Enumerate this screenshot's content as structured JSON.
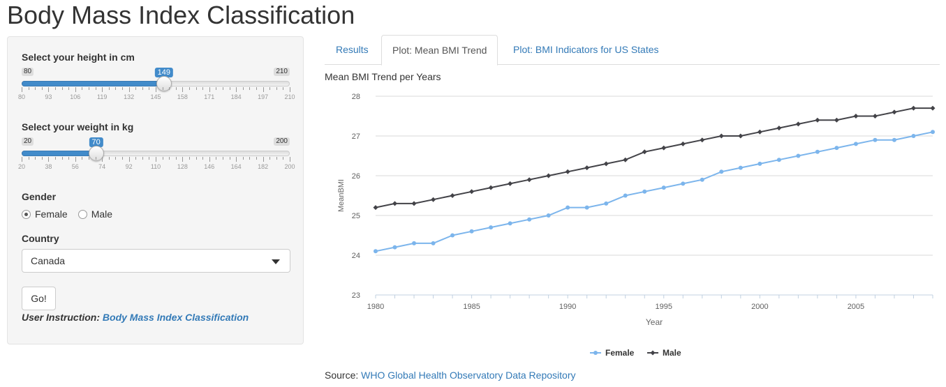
{
  "app": {
    "title": "Body Mass Index Classification"
  },
  "sidebar": {
    "height_slider": {
      "label": "Select your height in cm",
      "min": 80,
      "max": 210,
      "value": 149,
      "min_label": "80",
      "max_label": "210",
      "value_label": "149",
      "grid_labels": [
        "80",
        "93",
        "106",
        "119",
        "132",
        "145",
        "158",
        "171",
        "184",
        "197",
        "210"
      ]
    },
    "weight_slider": {
      "label": "Select your weight in kg",
      "min": 20,
      "max": 200,
      "value": 70,
      "min_label": "20",
      "max_label": "200",
      "value_label": "70",
      "grid_labels": [
        "20",
        "38",
        "56",
        "74",
        "92",
        "110",
        "128",
        "146",
        "164",
        "182",
        "200"
      ]
    },
    "gender": {
      "label": "Gender",
      "options": [
        "Female",
        "Male"
      ],
      "selected": "Female"
    },
    "country": {
      "label": "Country",
      "value": "Canada"
    },
    "go_button": "Go!",
    "instruction": {
      "prefix": "User Instruction:",
      "link": "Body Mass Index Classification"
    },
    "colors": {
      "accent": "#428bca",
      "panel_bg": "#f5f5f5"
    }
  },
  "tabs": [
    {
      "label": "Results",
      "active": false
    },
    {
      "label": "Plot: Mean BMI Trend",
      "active": true
    },
    {
      "label": "Plot: BMI Indicators for US States",
      "active": false
    }
  ],
  "chart_heading": "Mean BMI Trend per Years",
  "chart_data": {
    "type": "line",
    "title": "",
    "xlabel": "Year",
    "ylabel": "MeanBMI",
    "x": [
      1980,
      1981,
      1982,
      1983,
      1984,
      1985,
      1986,
      1987,
      1988,
      1989,
      1990,
      1991,
      1992,
      1993,
      1994,
      1995,
      1996,
      1997,
      1998,
      1999,
      2000,
      2001,
      2002,
      2003,
      2004,
      2005,
      2006,
      2007,
      2008,
      2009
    ],
    "xticks": [
      "1980",
      "1985",
      "1990",
      "1995",
      "2000",
      "2005"
    ],
    "yticks": [
      "23",
      "24",
      "25",
      "26",
      "27",
      "28"
    ],
    "ylim": [
      23,
      28
    ],
    "xlim": [
      1980,
      2009
    ],
    "grid": "horizontal",
    "legend": "bottom-center",
    "series": [
      {
        "name": "Female",
        "color": "#7cb5ec",
        "marker": "circle",
        "values": [
          24.1,
          24.2,
          24.3,
          24.3,
          24.5,
          24.6,
          24.7,
          24.8,
          24.9,
          25.0,
          25.2,
          25.2,
          25.3,
          25.5,
          25.6,
          25.7,
          25.8,
          25.9,
          26.1,
          26.2,
          26.3,
          26.4,
          26.5,
          26.6,
          26.7,
          26.8,
          26.9,
          26.9,
          27.0,
          27.1
        ]
      },
      {
        "name": "Male",
        "color": "#434348",
        "marker": "diamond",
        "values": [
          25.2,
          25.3,
          25.3,
          25.4,
          25.5,
          25.6,
          25.7,
          25.8,
          25.9,
          26.0,
          26.1,
          26.2,
          26.3,
          26.4,
          26.6,
          26.7,
          26.8,
          26.9,
          27.0,
          27.0,
          27.1,
          27.2,
          27.3,
          27.4,
          27.4,
          27.5,
          27.5,
          27.6,
          27.7,
          27.7
        ]
      }
    ]
  },
  "source": {
    "prefix": "Source:",
    "link": "WHO Global Health Observatory Data Repository"
  }
}
